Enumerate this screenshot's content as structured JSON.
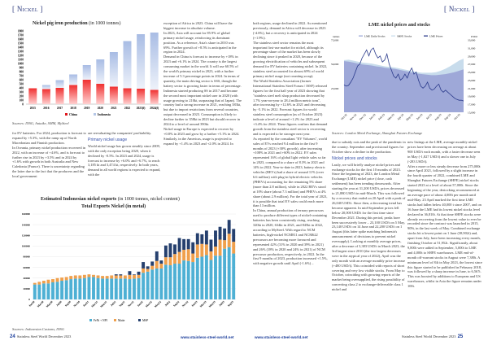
{
  "left_page": {
    "section": "[ Nickel ]",
    "col_right": [
      "exception of Africa in 2023. China will have the biggest increase in absolute volume.",
      "In 2023, Asia will account for 85.9% of global primary nickel usage, reinforcing its dominant position. As a reference, Asia's share in 2010 was 69%. Further growth of +8.5% is anticipated in the region in 2024.",
      "Demand in China is forecast to increase by +18% in 2023 and +6.1% in 2024. The country is the largest consuming market in the world. It will use 60.5% of the world's primary nickel in 2023, with a further increase of 5.3 percentage points in 2024. In terms of quantity, the main driving sector is SSS, though the battery sector is growing faster in terms of percentage.",
      "Indonesia started producing SS in 2017 and became the second most important nickel user in 2020 (with usage growing to 210kt, surpassing that of Japan). The country had a strong increase in 2021, reaching 383kt, but due to import restrictions from several countries, output decreased in 2023. Consumption is likely to decline further to 358kt in 2023 but should recover in 2024 to a level of around 390kt.",
      "Nickel usage in Europe is expected to recover by +0.8% in 2023 and grow by a further +5.1% in 2024. Similarly, in the Americas, usage is projected to expand by +1.4% in 2023 and +2.0% in 2024. In"
    ],
    "col_a": [
      "for EV batteries. For 2024, production is forecast to expand by +5.3%, with the ramp up of North Macedonian and Finnish production.",
      "In Oceania, primary nickel production recovered in 2022, with an increase of +4.6%, and is forecast to further rise in 2023 by +3.5% and in 2024 by +1.6% with growth in both Australia and New Caledonia (France). There is uncertainty regarding the latter due to the fact that the producers and the local government"
    ],
    "col_b": [
      "are reevaluating the companies' profitability."
    ],
    "col_b_heading": "Primary nickel usage",
    "col_b2": [
      "World nickel usage has grown steadily since 2009, with the only exception being 2020, when it declined by -0.5%. In 2023 and 2024, usage is forecast to increase by +6.0% and +6.7%, to reach 3,185 kt and 3,474 kt, respectively. In both years, demand in all world regions is expected to expand, with the"
    ],
    "footer": {
      "page": "24",
      "magazine": "Stainless Steel World December 2023",
      "url": "www.stainless-steel-world.net"
    }
  },
  "right_page": {
    "section": "[ Nickel ]",
    "col_left": [
      "both regions, usage declined in 2022. As mentioned previously, demand in Africa will decrease in 2023 (-4.6%), but a recovery is anticipated in 2024 (+1.9%).",
      "The stainless steel sector remains the most important first-use market for nickel, although its percentage share of the market has been slowly declining since it peaked in 2020, because of the growing electrification of vehicles and subsequent demand for EV batteries containing nickel. In 2022, stainless steel accounted for almost 69% of world primary nickel usage (not counting scrap).",
      "The World Stainless Association (former International Stainless Steel Forum / ISSF) released figures for the first half year of 2023 showing that \"stainless steel melt shop production decreased by 1.7% year-on-year to 28.4 million metric tons\", after increasing by +12.6% in 2021 and decreasing by -5.1% in 2022. Forecast figures for world stainless steel consumption (as of October 2023) indicate a level of around +1.2% for 2023 and +3.4% for 2024. These figures confirm that demand growth from the stainless steel sector is recovering and is expected to be stronger next year.",
      "As reported by the consultant \"EV Volumes\", world sales of EVs reached 9.4 million in the first 9 months of 2023 (+30% growth), after increasing +108% in 2021 and +60% in 2022. EV sales represented 16% of global light vehicle sales so far in 2023, compared to a share of 8.3% in 2021 and 14% in 2022. Year-to-date in 2023, battery electric vehicles (BEVs) had a share of around 11% (over 6.6 million) with plug-in hybrid electric vehicles (PHEVs) accounting for the remaining 5% share (more than 2.8 million), while in 2022 BEVs stood at 10% share (about 7.3 million) and PHEVs at 4% share (about 2.9 million). For the total year of 2023, it is possible that total EV sales could reach more than 13 million.",
      "In China, annual production of ternary precursors used to produce different types of nickel-containing batteries has been consistently rising, reaching 320kt in 2020, 634kt in 2021, and 845kt in 2022, according to MySteel. With regard to NCM batteries, high-nickel NCM811 and NCM622 precursors are becoming more favoured and represented 42% (31% in 2020 and 39% in 2021) and 26% (18% in 2020 and 24% in 2021) of NCM precursor production, respectively, in 2022. In the first 9 months of 2023, production increased +1.5%, with negative growth until April (-1.6%) –"
    ],
    "col_mid": [
      "due to subsidy cuts and the peak of the pandemic in the country. September and provisional figures for October show a decline in the production."
    ],
    "col_mid_heading": "Nickel prices and stocks",
    "col_mid2": [
      "Lastly, we will briefly analyse nickel prices and exchange stocks for the first 10 months of 2023.",
      "Since the beginning of 2023, the London Metal Exchange (LME) nickel price (close, cash settlement) has been trending downwards. After starting the year at 31,200 USD/t, prices decreased to 21,880 USD/t in mid-March. This was followed by a recovery that ended on 20 April with a peak of 26,040 USD/t. Since then, a decreasing trend has become apparent. In mid-September prices fell below 20,000 USD/t for the first time since December 2021. During this period, peaks have been successively lower – 23,100 USD/t on 5 May, 23,140 USD/t on 14 June and 22,200 USD/t on 1 August (this latter spike matching Indonesia's announcement of decisions to prevent nickel oversupply). Looking at monthly average prices, after a decrease of 3,383 USD/t in March 2023, the 3rd largest since 2010 (the two largest decreases were in the atypical year of 2022), April was the only month with an average monthly price increase (+480 USD/t). This coincided with reports of short covering and very low visible stocks. From May to October, coinciding with growing reports of the market being oversupplied, the rising possibility of converting class 2 to exchange-deliverable class 1 nickel and"
    ],
    "col_right": [
      "new listings at the LME, average monthly nickel prices have been decreasing on average at about 900 USD/t each month, with a faster decrease seen in May (-1,827 USD/t) and a slower one in July (-283 USD/t).",
      "After a more or less steady decrease from 275,000t since April 2021, followed by a slight increase in the fourth quarter of 2022, combined LME and Shanghai Futures Exchange (SHFE) nickel stocks started 2023 at a level of about 57,000t. Since the beginning of the year, destocking recommenced at an average pace of about 4,000t per month until mid-May. 23 April marked the first time LME stocks had fallen below 40,000 t since 2007, and on 16 June the LME had its lowest nickel stocks level declared in 36,810t. At that time SHFE stocks were already recovering from the lowest value to ever be recorded since the contract was launched in 2015, 909t, in the last week of May. Combined exchange stocks hit a lowest point on 1 June (38,902t) and, apart from July, have been increasing every month, finishing October at 51,952t. Significantly, about 9,800t were added in September, 5,000t to LME and 4,000t to SHFE warehouses. LME end-of-month off-warrant stocks in August were 7,380t. A minimum level of 84t in May 2023, the lowest since this figure started to be published in February 2018, was followed by a sharp increase in June, to 6,567t. This was boosted by additions to European and US warehouses, whilst in Asia the figure remains under 100t."
    ],
    "footer": {
      "page": "25",
      "magazine": "Stainless Steel World December 2023",
      "url": "www.stainless-steel-world.net"
    }
  },
  "chart_data": [
    {
      "type": "bar",
      "stacked": true,
      "title": "Nickel pig iron production",
      "title_unit": "(in 1000 tonnes)",
      "categories": [
        "2015",
        "2016",
        "2017",
        "2018",
        "2019",
        "2020",
        "2021",
        "2022",
        "2023(f)",
        "2024(f)"
      ],
      "series": [
        {
          "name": "China",
          "color": "#e0151b",
          "values": [
            390,
            370,
            400,
            470,
            600,
            500,
            430,
            390,
            380,
            350
          ]
        },
        {
          "name": "Indonesia",
          "color": "#b4c6e6",
          "values": [
            0,
            100,
            190,
            260,
            360,
            600,
            850,
            1160,
            1340,
            1410
          ]
        }
      ],
      "ylim": [
        0,
        1800
      ],
      "yticks": [
        0,
        100,
        200,
        300,
        400,
        500,
        600,
        700,
        800,
        900,
        1000,
        1100,
        1200,
        1300,
        1400,
        1500,
        1600,
        1700,
        1800
      ],
      "legend": "bottom",
      "source": "Sources: INSG, Antaike, SMM, MySteel"
    },
    {
      "type": "line",
      "title": "LME nickel prices and stocks",
      "left_axis_label": "tonnes",
      "right_axis_label": "USD/t",
      "left_ticks": [
        "75,000",
        "50,000",
        "25,000"
      ],
      "left_ylim": [
        0,
        75000
      ],
      "right_ticks": [
        "33,000",
        "31,000",
        "29,000",
        "27,000",
        "25,000",
        "23,000",
        "21,000",
        "19,000",
        "17,000",
        "15,000"
      ],
      "right_ylim": [
        15000,
        33000
      ],
      "x_labels": [
        "Oct-22",
        "Nov-22",
        "Dec-22",
        "Jan-23",
        "Feb-23",
        "Mar-23",
        "Apr-23",
        "May-23",
        "Jun-23",
        "Jul-23",
        "Aug-23",
        "Sep-23",
        "Oct-23"
      ],
      "series": [
        {
          "name": "LME Daily Stocks",
          "color": "#9ea8d8",
          "type": "area",
          "values": [
            53000,
            52500,
            51500,
            50500,
            49500,
            49000,
            48500,
            47500,
            47000,
            46000,
            45500,
            45000,
            44000,
            43000,
            42000,
            41000,
            40000,
            39500,
            39000,
            38500,
            38500,
            39000,
            39500,
            40500,
            41500,
            43000,
            44500
          ]
        },
        {
          "name": "SHFE Stocks",
          "color": "#c8dcec",
          "type": "area",
          "values": [
            54000,
            54500,
            53500,
            52500,
            51500,
            51000,
            50500,
            49500,
            48500,
            47500,
            47000,
            46500,
            45500,
            44500,
            43500,
            42500,
            41500,
            41000,
            41000,
            41000,
            41500,
            43000,
            45000,
            47500,
            50500,
            53500,
            55500
          ]
        },
        {
          "name": "LME Prices",
          "color": "#2c3c8c",
          "type": "line",
          "values": [
            21800,
            21500,
            21700,
            22500,
            23500,
            25000,
            26500,
            27000,
            28500,
            29500,
            30500,
            29000,
            30500,
            31000,
            29500,
            28500,
            29000,
            27500,
            28000,
            29500,
            27000,
            25500,
            24000,
            23500,
            24500,
            23000,
            23500,
            24500,
            23500,
            25000,
            26000,
            24500,
            25000,
            23000,
            21500,
            21000,
            21500,
            22500,
            21000,
            20500,
            20800,
            21500,
            22000,
            20500,
            20000,
            20500,
            20000,
            19500,
            19000,
            18500,
            18200,
            18000,
            18000,
            17800
          ]
        }
      ],
      "legend": "top",
      "source": "Sources: London Metal Exchange, Shanghai Futures Exchange"
    },
    {
      "type": "bar",
      "stacked": true,
      "title": "Estimated Indonesian nickel exports",
      "title_unit": "(in 1000 tonnes, nickel content)",
      "subtitle": "Total Exports Nickel (in metal)",
      "x_labels": [
        "Jan20",
        "Mar20",
        "May20",
        "Jul20",
        "Sep20",
        "Nov20",
        "Jan21",
        "Mar21",
        "May21",
        "Jul21",
        "Sep21",
        "Nov21",
        "Jan22",
        "Mar22",
        "May22",
        "Jul22",
        "Sep22",
        "Nov22",
        "Jan23",
        "Mar23",
        "May23",
        "Jul23",
        "Sep23"
      ],
      "ylim": [
        0,
        160000
      ],
      "yticks": [
        "0",
        "20000",
        "40000",
        "60000",
        "80000",
        "100000",
        "120000",
        "140000",
        "160000"
      ],
      "series": [
        {
          "name": "FeNi + NPI",
          "color": "#4eb0d4",
          "values": [
            28000,
            28000,
            30000,
            30000,
            32000,
            33000,
            35000,
            36000,
            38000,
            39000,
            39000,
            40000,
            42000,
            42000,
            40000,
            39000,
            39000,
            39000,
            39000,
            39000,
            39000,
            38000,
            39000,
            40000,
            50000,
            52000,
            56000,
            58000,
            58000,
            65000,
            64000,
            67000,
            67000,
            73000,
            72000,
            70000,
            78000,
            80000,
            83000,
            74000,
            82000,
            82000,
            95000,
            98000,
            86000
          ]
        },
        {
          "name": "Matte",
          "color": "#f0a04c",
          "values": [
            3000,
            5000,
            5000,
            7000,
            6000,
            7000,
            6000,
            6000,
            6000,
            6000,
            6000,
            6000,
            5000,
            4000,
            5000,
            5000,
            5000,
            6000,
            6000,
            6000,
            6000,
            8000,
            7000,
            6000,
            8000,
            5000,
            7000,
            14000,
            9000,
            14000,
            15000,
            18000,
            22000,
            20000,
            22000,
            16000,
            25000,
            24000,
            20000,
            16000,
            17000,
            30000,
            16000,
            25000,
            22000
          ]
        },
        {
          "name": "MSP",
          "color": "#26406e",
          "values": [
            0,
            0,
            0,
            0,
            0,
            0,
            0,
            0,
            0,
            0,
            0,
            0,
            0,
            0,
            0,
            0,
            0,
            0,
            2000,
            2000,
            0,
            7000,
            1000,
            6000,
            12000,
            5000,
            8000,
            18000,
            6000,
            22000,
            26000,
            18000,
            26000,
            20000,
            19000,
            21000,
            21000,
            18000,
            26000,
            22000,
            30000,
            24000,
            22000,
            26000,
            24000
          ]
        }
      ],
      "legend": "bottom",
      "source": "Sources: Indonesian Customs, INSG"
    }
  ]
}
